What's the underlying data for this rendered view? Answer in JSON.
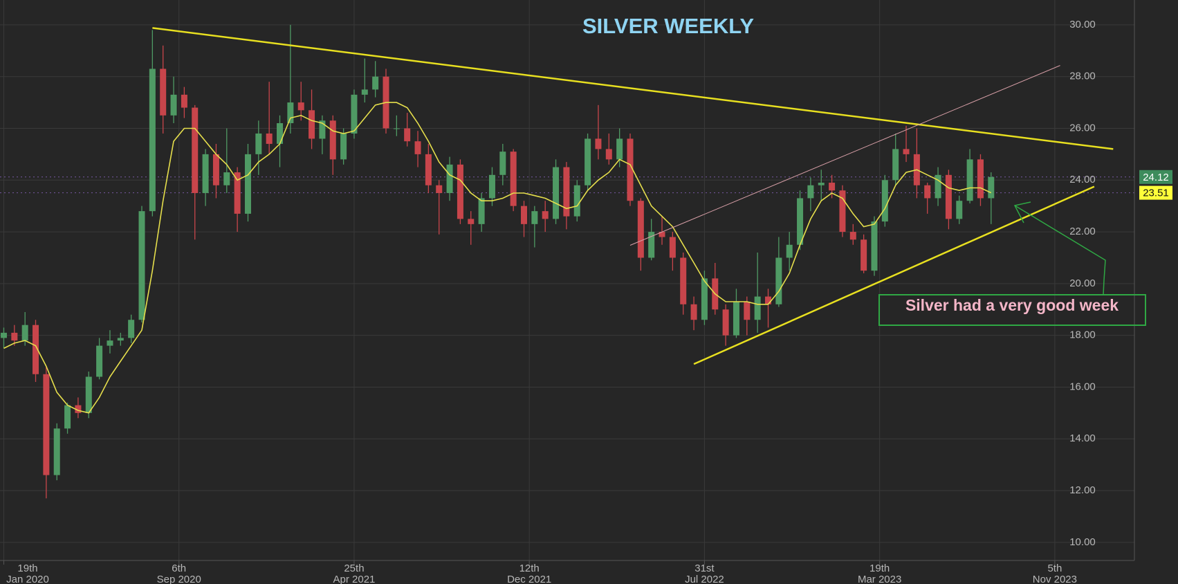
{
  "chart_data": {
    "type": "candlestick",
    "title": "SILVER WEEKLY",
    "annotation": "Silver had a very good week",
    "x": [
      "2020-01-19",
      "2020-02-02",
      "2020-02-16",
      "2020-03-01",
      "2020-03-15",
      "2020-03-29",
      "2020-04-12",
      "2020-04-26",
      "2020-05-10",
      "2020-05-24",
      "2020-06-07",
      "2020-06-21",
      "2020-07-05",
      "2020-07-19",
      "2020-08-02",
      "2020-08-16",
      "2020-08-30",
      "2020-09-13",
      "2020-09-27",
      "2020-10-11",
      "2020-10-25",
      "2020-11-08",
      "2020-11-22",
      "2020-12-06",
      "2020-12-20",
      "2021-01-03",
      "2021-01-17",
      "2021-01-31",
      "2021-02-14",
      "2021-02-28",
      "2021-03-14",
      "2021-03-28",
      "2021-04-11",
      "2021-04-25",
      "2021-05-09",
      "2021-05-23",
      "2021-06-06",
      "2021-06-20",
      "2021-07-04",
      "2021-07-18",
      "2021-08-01",
      "2021-08-15",
      "2021-08-29",
      "2021-09-12",
      "2021-09-26",
      "2021-10-10",
      "2021-10-24",
      "2021-11-07",
      "2021-11-21",
      "2021-12-05",
      "2021-12-19",
      "2022-01-02",
      "2022-01-16",
      "2022-01-30",
      "2022-02-13",
      "2022-02-27",
      "2022-03-13",
      "2022-03-27",
      "2022-04-10",
      "2022-04-24",
      "2022-05-08",
      "2022-05-22",
      "2022-06-05",
      "2022-06-19",
      "2022-07-03",
      "2022-07-17",
      "2022-07-31",
      "2022-08-14",
      "2022-08-28",
      "2022-09-11",
      "2022-09-25",
      "2022-10-09",
      "2022-10-23",
      "2022-11-06",
      "2022-11-20",
      "2022-12-04",
      "2022-12-18",
      "2023-01-01",
      "2023-01-15",
      "2023-01-29",
      "2023-02-12",
      "2023-02-26",
      "2023-03-12",
      "2023-03-26",
      "2023-04-09",
      "2023-04-23",
      "2023-05-07",
      "2023-05-21",
      "2023-06-04",
      "2023-06-18",
      "2023-07-02",
      "2023-07-16",
      "2023-07-30",
      "2023-08-13"
    ],
    "open": [
      17.9,
      18.1,
      17.8,
      18.4,
      16.5,
      12.6,
      14.4,
      15.3,
      15.0,
      16.4,
      17.6,
      17.8,
      17.9,
      18.6,
      22.8,
      28.3,
      26.5,
      27.3,
      26.8,
      23.5,
      25.0,
      23.8,
      24.3,
      22.7,
      25.0,
      25.8,
      25.4,
      26.2,
      27.0,
      26.7,
      25.6,
      26.3,
      24.8,
      25.8,
      27.3,
      27.5,
      28.0,
      26.0,
      26.0,
      25.5,
      25.0,
      23.8,
      23.5,
      24.6,
      22.5,
      22.3,
      23.3,
      24.2,
      25.1,
      23.0,
      22.3,
      22.8,
      22.5,
      24.5,
      22.6,
      23.8,
      25.6,
      25.2,
      24.8,
      25.6,
      23.2,
      21.0,
      22.0,
      21.8,
      21.0,
      19.2,
      18.6,
      20.2,
      19.0,
      18.0,
      19.3,
      18.6,
      19.5,
      19.2,
      21.0,
      21.5,
      23.3,
      23.8,
      23.9,
      23.6,
      22.0,
      21.7,
      20.5,
      22.4,
      24.0,
      25.2,
      25.0,
      23.8,
      23.3,
      24.2,
      22.5,
      23.2,
      24.8,
      23.3
    ],
    "high": [
      18.3,
      18.4,
      18.9,
      18.6,
      16.8,
      14.6,
      15.4,
      15.6,
      16.6,
      17.9,
      18.2,
      18.1,
      18.8,
      23.0,
      29.8,
      29.2,
      28.0,
      27.6,
      26.9,
      25.2,
      25.4,
      26.0,
      24.5,
      25.4,
      26.3,
      27.8,
      26.5,
      30.0,
      27.8,
      27.5,
      26.5,
      26.5,
      26.0,
      27.5,
      28.7,
      28.6,
      28.3,
      26.5,
      26.6,
      25.9,
      25.4,
      24.0,
      24.9,
      24.8,
      22.8,
      23.5,
      24.5,
      25.4,
      25.2,
      23.2,
      23.0,
      23.2,
      24.8,
      24.7,
      24.0,
      25.8,
      26.9,
      25.8,
      26.0,
      25.8,
      23.3,
      22.5,
      22.6,
      22.0,
      21.2,
      19.5,
      20.5,
      20.8,
      19.2,
      19.8,
      19.5,
      21.2,
      19.8,
      21.8,
      22.0,
      23.6,
      24.1,
      24.4,
      24.2,
      23.8,
      22.3,
      21.9,
      22.6,
      24.2,
      25.8,
      26.1,
      26.0,
      23.9,
      24.5,
      24.4,
      23.4,
      25.2,
      25.0,
      24.3
    ],
    "low": [
      17.5,
      17.6,
      17.6,
      16.2,
      11.7,
      12.4,
      14.2,
      14.8,
      14.8,
      16.3,
      17.3,
      17.6,
      17.7,
      18.5,
      22.6,
      25.8,
      26.2,
      26.4,
      21.7,
      23.0,
      23.3,
      23.5,
      22.0,
      22.4,
      24.2,
      25.0,
      24.5,
      25.8,
      26.3,
      25.2,
      25.0,
      24.2,
      24.6,
      25.6,
      27.0,
      27.2,
      25.8,
      25.7,
      25.3,
      24.5,
      23.5,
      21.9,
      23.2,
      22.3,
      21.5,
      22.0,
      23.0,
      23.8,
      22.8,
      21.8,
      21.4,
      22.0,
      22.3,
      22.1,
      22.4,
      23.6,
      24.8,
      24.6,
      24.5,
      23.0,
      20.5,
      20.9,
      21.5,
      20.5,
      18.8,
      18.2,
      18.4,
      18.8,
      17.6,
      17.9,
      18.0,
      18.1,
      18.3,
      19.1,
      20.5,
      21.3,
      22.8,
      23.2,
      23.3,
      21.8,
      21.5,
      20.4,
      20.3,
      22.2,
      23.8,
      24.7,
      23.3,
      22.7,
      23.0,
      22.1,
      22.3,
      23.1,
      23.0,
      22.3
    ],
    "close": [
      18.1,
      17.8,
      18.4,
      16.5,
      12.6,
      14.4,
      15.3,
      15.0,
      16.4,
      17.6,
      17.8,
      17.9,
      18.6,
      22.8,
      28.3,
      26.5,
      27.3,
      26.8,
      23.5,
      25.0,
      23.8,
      24.3,
      22.7,
      25.0,
      25.8,
      25.4,
      26.2,
      27.0,
      26.7,
      25.6,
      26.3,
      24.8,
      25.8,
      27.3,
      27.5,
      28.0,
      26.0,
      26.0,
      25.5,
      25.0,
      23.8,
      23.5,
      24.6,
      22.5,
      22.3,
      23.3,
      24.2,
      25.1,
      23.0,
      22.3,
      22.8,
      22.5,
      24.5,
      22.6,
      23.8,
      25.6,
      25.2,
      24.8,
      25.6,
      23.2,
      21.0,
      22.0,
      21.8,
      21.0,
      19.2,
      18.6,
      20.2,
      19.0,
      18.0,
      19.3,
      18.6,
      19.5,
      19.2,
      21.0,
      21.5,
      23.3,
      23.8,
      23.9,
      23.6,
      22.0,
      21.7,
      20.5,
      22.4,
      24.0,
      25.2,
      25.0,
      23.8,
      23.3,
      24.2,
      22.5,
      23.2,
      24.8,
      23.3,
      24.12
    ],
    "ma": [
      17.5,
      17.7,
      17.8,
      17.6,
      16.8,
      15.8,
      15.3,
      15.1,
      15.0,
      15.6,
      16.4,
      17.0,
      17.6,
      18.2,
      20.5,
      23.2,
      25.5,
      26.0,
      26.0,
      25.5,
      25.0,
      24.6,
      24.0,
      24.2,
      24.7,
      25.0,
      25.4,
      26.4,
      26.5,
      26.3,
      26.2,
      25.9,
      25.8,
      25.9,
      26.4,
      26.9,
      27.0,
      27.0,
      26.8,
      26.2,
      25.5,
      24.7,
      24.2,
      24.0,
      23.5,
      23.2,
      23.2,
      23.3,
      23.5,
      23.5,
      23.4,
      23.3,
      23.1,
      22.9,
      23.0,
      23.6,
      24.0,
      24.3,
      24.8,
      24.6,
      23.8,
      23.0,
      22.6,
      22.2,
      21.5,
      20.8,
      20.1,
      19.6,
      19.3,
      19.3,
      19.3,
      19.2,
      19.2,
      19.7,
      20.4,
      21.5,
      22.5,
      23.2,
      23.5,
      23.3,
      22.7,
      22.2,
      22.3,
      22.9,
      23.8,
      24.3,
      24.4,
      24.2,
      24.0,
      23.7,
      23.6,
      23.7,
      23.7,
      23.51
    ],
    "up_color": "#4f9a64",
    "down_color": "#c8454b",
    "ma_color": "#e6df4c",
    "title_color": "#8fd4f2",
    "trendlines": [
      {
        "x": [
          "2020-08-02",
          "2024-01-21"
        ],
        "y": [
          29.88,
          25.2
        ],
        "color": "#e8e020",
        "width": 2.5
      },
      {
        "x": [
          "2022-07-17",
          "2023-12-27"
        ],
        "y": [
          16.89,
          23.75
        ],
        "color": "#e8e020",
        "width": 2.5
      },
      {
        "x": [
          "2022-04-24",
          "2023-11-12"
        ],
        "y": [
          21.48,
          28.43
        ],
        "color": "#d9a0a8",
        "width": 1
      }
    ],
    "price_tags": [
      {
        "value": 24.12,
        "color": "#3d8c5c",
        "text_color": "#ffffff"
      },
      {
        "value": 23.51,
        "color": "#ffff3a",
        "text_color": "#111111"
      }
    ],
    "xlim": [
      "2020-01-14",
      "2024-02-18"
    ],
    "ylim": [
      9.3,
      30.96
    ],
    "xticks": [
      {
        "value": "2020-01-19",
        "label": [
          "19th",
          "Jan 2020"
        ]
      },
      {
        "value": "2020-09-06",
        "label": [
          "6th",
          "Sep 2020"
        ]
      },
      {
        "value": "2021-04-25",
        "label": [
          "25th",
          "Apr 2021"
        ]
      },
      {
        "value": "2021-12-12",
        "label": [
          "12th",
          "Dec 2021"
        ]
      },
      {
        "value": "2022-07-31",
        "label": [
          "31st",
          "Jul 2022"
        ]
      },
      {
        "value": "2023-03-19",
        "label": [
          "19th",
          "Mar 2023"
        ]
      },
      {
        "value": "2023-11-05",
        "label": [
          "5th",
          "Nov 2023"
        ]
      }
    ],
    "yticks": [
      {
        "value": 10,
        "label": "10.00"
      },
      {
        "value": 12,
        "label": "12.00"
      },
      {
        "value": 14,
        "label": "14.00"
      },
      {
        "value": 16,
        "label": "16.00"
      },
      {
        "value": 18,
        "label": "18.00"
      },
      {
        "value": 20,
        "label": "20.00"
      },
      {
        "value": 22,
        "label": "22.00"
      },
      {
        "value": 24,
        "label": "24.00"
      },
      {
        "value": 26,
        "label": "26.00"
      },
      {
        "value": 28,
        "label": "28.00"
      },
      {
        "value": 30,
        "label": "30.00"
      }
    ],
    "grid": true
  }
}
